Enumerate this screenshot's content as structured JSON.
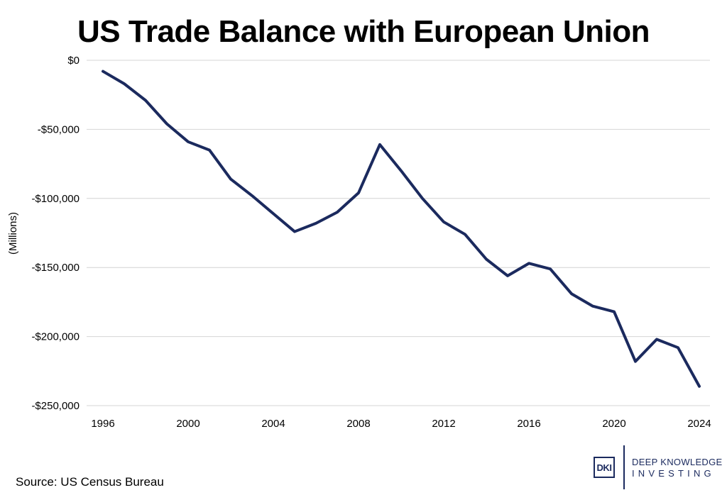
{
  "chart_data": {
    "type": "line",
    "title": "US Trade Balance with European Union",
    "ylabel": "(Millions)",
    "xlabel": "",
    "x": [
      1996,
      1997,
      1998,
      1999,
      2000,
      2001,
      2002,
      2003,
      2004,
      2005,
      2006,
      2007,
      2008,
      2009,
      2010,
      2011,
      2012,
      2013,
      2014,
      2015,
      2016,
      2017,
      2018,
      2019,
      2020,
      2021,
      2022,
      2023,
      2024
    ],
    "series": [
      {
        "values": [
          -8000,
          -17000,
          -29000,
          -46000,
          -59000,
          -65000,
          -86000,
          -98000,
          -111000,
          -124000,
          -118000,
          -110000,
          -96000,
          -61000,
          -80000,
          -100000,
          -117000,
          -126000,
          -144000,
          -156000,
          -147000,
          -151000,
          -169000,
          -178000,
          -182000,
          -218000,
          -202000,
          -208000,
          -236000
        ],
        "color": "#1b2a5e"
      }
    ],
    "xticks": [
      "1996",
      "2000",
      "2004",
      "2008",
      "2012",
      "2016",
      "2020",
      "2024"
    ],
    "yticks": [
      "$0",
      "-$50,000",
      "-$100,000",
      "-$150,000",
      "-$200,000",
      "-$250,000"
    ],
    "xlim": [
      1996,
      2024
    ],
    "ylim": [
      -250000,
      0
    ],
    "grid": "horizontal",
    "legend": "none"
  },
  "footer": {
    "source": "Source: US Census Bureau"
  },
  "logo": {
    "mark": "DKI",
    "line1": "DEEP KNOWLEDGE",
    "line2": "INVESTING"
  }
}
